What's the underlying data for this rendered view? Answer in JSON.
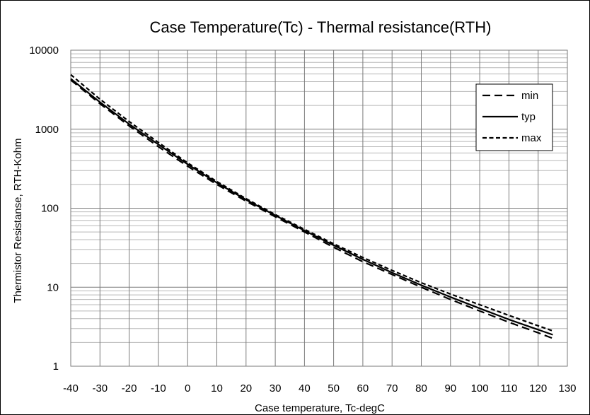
{
  "chart_data": {
    "type": "line",
    "title": "Case Temperature(Tc) - Thermal resistance(RTH)",
    "xlabel": "Case temperature, Tc-degC",
    "ylabel": "Thermistor Resistanse, RTH-Kohm",
    "xlim": [
      -40,
      130
    ],
    "ylim": [
      1,
      10000
    ],
    "yscale": "log",
    "x_ticks": [
      -40,
      -30,
      -20,
      -10,
      0,
      10,
      20,
      30,
      40,
      50,
      60,
      70,
      80,
      90,
      100,
      110,
      120,
      130
    ],
    "y_ticks": [
      1,
      10,
      100,
      1000,
      10000
    ],
    "grid": true,
    "legend_position": "top-right",
    "x": [
      -40,
      -30,
      -20,
      -10,
      0,
      10,
      20,
      30,
      40,
      50,
      60,
      70,
      80,
      90,
      100,
      110,
      120,
      125
    ],
    "series": [
      {
        "name": "min",
        "dash": "long-dash",
        "values": [
          4200,
          2100,
          1100,
          600,
          340,
          200,
          123,
          78,
          50,
          32,
          21,
          14.5,
          10,
          7,
          5,
          3.6,
          2.65,
          2.25
        ]
      },
      {
        "name": "typ",
        "dash": "solid",
        "values": [
          4350,
          2200,
          1160,
          640,
          360,
          210,
          128,
          81,
          52,
          34,
          22.5,
          15.3,
          10.6,
          7.5,
          5.4,
          3.9,
          2.9,
          2.5
        ]
      },
      {
        "name": "max",
        "dash": "short-dash",
        "values": [
          4900,
          2400,
          1250,
          680,
          375,
          218,
          132,
          83,
          54,
          35.5,
          23.8,
          16.3,
          11.4,
          8.2,
          6.0,
          4.4,
          3.25,
          2.8
        ]
      }
    ]
  }
}
